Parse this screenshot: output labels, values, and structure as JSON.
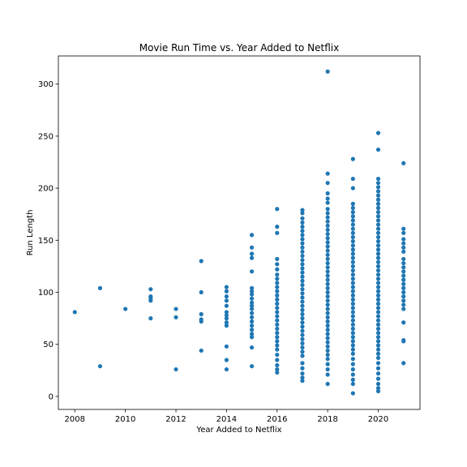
{
  "chart_data": {
    "type": "scatter",
    "title": "Movie Run Time vs. Year Added to Netflix",
    "xlabel": "Year Added to Netflix",
    "ylabel": "Run Length",
    "xlim": [
      2007.35,
      2021.65
    ],
    "ylim": [
      -12.5,
      327
    ],
    "xticks": [
      2008,
      2010,
      2012,
      2014,
      2016,
      2018,
      2020
    ],
    "yticks": [
      0,
      50,
      100,
      150,
      200,
      250,
      300
    ],
    "grid": false,
    "legend": "none",
    "marker_color": "#1f77b4",
    "series": [
      {
        "points": [
          [
            2008,
            81
          ],
          [
            2009,
            104
          ],
          [
            2009,
            29
          ],
          [
            2010,
            84
          ],
          [
            2011,
            103
          ],
          [
            2011,
            96
          ],
          [
            2011,
            94
          ],
          [
            2011,
            92
          ],
          [
            2011,
            75
          ],
          [
            2012,
            84
          ],
          [
            2012,
            76
          ],
          [
            2012,
            26
          ],
          [
            2013,
            130
          ],
          [
            2013,
            100
          ],
          [
            2013,
            79
          ],
          [
            2013,
            74
          ],
          [
            2013,
            72
          ],
          [
            2013,
            44
          ],
          [
            2014,
            105
          ],
          [
            2014,
            101
          ],
          [
            2014,
            96
          ],
          [
            2014,
            92
          ],
          [
            2014,
            87
          ],
          [
            2014,
            81
          ],
          [
            2014,
            78
          ],
          [
            2014,
            75
          ],
          [
            2014,
            71
          ],
          [
            2014,
            68
          ],
          [
            2014,
            48
          ],
          [
            2014,
            35
          ],
          [
            2014,
            26
          ],
          [
            2015,
            155
          ],
          [
            2015,
            143
          ],
          [
            2015,
            137
          ],
          [
            2015,
            133
          ],
          [
            2015,
            120
          ],
          [
            2015,
            104
          ],
          [
            2015,
            101
          ],
          [
            2015,
            98
          ],
          [
            2015,
            94
          ],
          [
            2015,
            90
          ],
          [
            2015,
            87
          ],
          [
            2015,
            84
          ],
          [
            2015,
            80
          ],
          [
            2015,
            76
          ],
          [
            2015,
            72
          ],
          [
            2015,
            68
          ],
          [
            2015,
            64
          ],
          [
            2015,
            60
          ],
          [
            2015,
            57
          ],
          [
            2015,
            47
          ],
          [
            2015,
            29
          ],
          [
            2016,
            180
          ],
          [
            2016,
            163
          ],
          [
            2016,
            157
          ],
          [
            2016,
            132
          ],
          [
            2016,
            127
          ],
          [
            2016,
            122
          ],
          [
            2016,
            117
          ],
          [
            2016,
            113
          ],
          [
            2016,
            109
          ],
          [
            2016,
            105
          ],
          [
            2016,
            101
          ],
          [
            2016,
            97
          ],
          [
            2016,
            93
          ],
          [
            2016,
            89
          ],
          [
            2016,
            85
          ],
          [
            2016,
            81
          ],
          [
            2016,
            77
          ],
          [
            2016,
            73
          ],
          [
            2016,
            69
          ],
          [
            2016,
            65
          ],
          [
            2016,
            61
          ],
          [
            2016,
            57
          ],
          [
            2016,
            53
          ],
          [
            2016,
            49
          ],
          [
            2016,
            45
          ],
          [
            2016,
            40
          ],
          [
            2016,
            35
          ],
          [
            2016,
            30
          ],
          [
            2016,
            26
          ],
          [
            2016,
            23
          ],
          [
            2017,
            179
          ],
          [
            2017,
            176
          ],
          [
            2017,
            171
          ],
          [
            2017,
            167
          ],
          [
            2017,
            163
          ],
          [
            2017,
            159
          ],
          [
            2017,
            155
          ],
          [
            2017,
            151
          ],
          [
            2017,
            147
          ],
          [
            2017,
            143
          ],
          [
            2017,
            139
          ],
          [
            2017,
            135
          ],
          [
            2017,
            131
          ],
          [
            2017,
            127
          ],
          [
            2017,
            123
          ],
          [
            2017,
            119
          ],
          [
            2017,
            115
          ],
          [
            2017,
            111
          ],
          [
            2017,
            107
          ],
          [
            2017,
            103
          ],
          [
            2017,
            99
          ],
          [
            2017,
            95
          ],
          [
            2017,
            91
          ],
          [
            2017,
            87
          ],
          [
            2017,
            83
          ],
          [
            2017,
            79
          ],
          [
            2017,
            75
          ],
          [
            2017,
            71
          ],
          [
            2017,
            67
          ],
          [
            2017,
            63
          ],
          [
            2017,
            59
          ],
          [
            2017,
            55
          ],
          [
            2017,
            51
          ],
          [
            2017,
            47
          ],
          [
            2017,
            43
          ],
          [
            2017,
            39
          ],
          [
            2017,
            32
          ],
          [
            2017,
            27
          ],
          [
            2017,
            22
          ],
          [
            2017,
            18
          ],
          [
            2017,
            15
          ],
          [
            2018,
            312
          ],
          [
            2018,
            214
          ],
          [
            2018,
            205
          ],
          [
            2018,
            195
          ],
          [
            2018,
            190
          ],
          [
            2018,
            186
          ],
          [
            2018,
            180
          ],
          [
            2018,
            176
          ],
          [
            2018,
            172
          ],
          [
            2018,
            168
          ],
          [
            2018,
            164
          ],
          [
            2018,
            160
          ],
          [
            2018,
            156
          ],
          [
            2018,
            152
          ],
          [
            2018,
            148
          ],
          [
            2018,
            144
          ],
          [
            2018,
            140
          ],
          [
            2018,
            136
          ],
          [
            2018,
            132
          ],
          [
            2018,
            128
          ],
          [
            2018,
            124
          ],
          [
            2018,
            120
          ],
          [
            2018,
            116
          ],
          [
            2018,
            112
          ],
          [
            2018,
            108
          ],
          [
            2018,
            104
          ],
          [
            2018,
            100
          ],
          [
            2018,
            96
          ],
          [
            2018,
            92
          ],
          [
            2018,
            88
          ],
          [
            2018,
            84
          ],
          [
            2018,
            80
          ],
          [
            2018,
            76
          ],
          [
            2018,
            72
          ],
          [
            2018,
            68
          ],
          [
            2018,
            64
          ],
          [
            2018,
            60
          ],
          [
            2018,
            56
          ],
          [
            2018,
            52
          ],
          [
            2018,
            48
          ],
          [
            2018,
            44
          ],
          [
            2018,
            40
          ],
          [
            2018,
            36
          ],
          [
            2018,
            31
          ],
          [
            2018,
            26
          ],
          [
            2018,
            21
          ],
          [
            2018,
            12
          ],
          [
            2019,
            228
          ],
          [
            2019,
            209
          ],
          [
            2019,
            200
          ],
          [
            2019,
            185
          ],
          [
            2019,
            181
          ],
          [
            2019,
            177
          ],
          [
            2019,
            173
          ],
          [
            2019,
            169
          ],
          [
            2019,
            165
          ],
          [
            2019,
            161
          ],
          [
            2019,
            157
          ],
          [
            2019,
            153
          ],
          [
            2019,
            149
          ],
          [
            2019,
            145
          ],
          [
            2019,
            141
          ],
          [
            2019,
            137
          ],
          [
            2019,
            133
          ],
          [
            2019,
            129
          ],
          [
            2019,
            125
          ],
          [
            2019,
            121
          ],
          [
            2019,
            117
          ],
          [
            2019,
            113
          ],
          [
            2019,
            109
          ],
          [
            2019,
            105
          ],
          [
            2019,
            101
          ],
          [
            2019,
            97
          ],
          [
            2019,
            93
          ],
          [
            2019,
            89
          ],
          [
            2019,
            85
          ],
          [
            2019,
            81
          ],
          [
            2019,
            77
          ],
          [
            2019,
            73
          ],
          [
            2019,
            69
          ],
          [
            2019,
            65
          ],
          [
            2019,
            61
          ],
          [
            2019,
            57
          ],
          [
            2019,
            53
          ],
          [
            2019,
            49
          ],
          [
            2019,
            45
          ],
          [
            2019,
            41
          ],
          [
            2019,
            36
          ],
          [
            2019,
            31
          ],
          [
            2019,
            26
          ],
          [
            2019,
            21
          ],
          [
            2019,
            16
          ],
          [
            2019,
            12
          ],
          [
            2019,
            3
          ],
          [
            2020,
            253
          ],
          [
            2020,
            237
          ],
          [
            2020,
            209
          ],
          [
            2020,
            205
          ],
          [
            2020,
            201
          ],
          [
            2020,
            197
          ],
          [
            2020,
            193
          ],
          [
            2020,
            189
          ],
          [
            2020,
            185
          ],
          [
            2020,
            181
          ],
          [
            2020,
            177
          ],
          [
            2020,
            173
          ],
          [
            2020,
            169
          ],
          [
            2020,
            165
          ],
          [
            2020,
            161
          ],
          [
            2020,
            157
          ],
          [
            2020,
            153
          ],
          [
            2020,
            149
          ],
          [
            2020,
            145
          ],
          [
            2020,
            141
          ],
          [
            2020,
            137
          ],
          [
            2020,
            133
          ],
          [
            2020,
            129
          ],
          [
            2020,
            125
          ],
          [
            2020,
            121
          ],
          [
            2020,
            117
          ],
          [
            2020,
            113
          ],
          [
            2020,
            109
          ],
          [
            2020,
            105
          ],
          [
            2020,
            101
          ],
          [
            2020,
            97
          ],
          [
            2020,
            93
          ],
          [
            2020,
            89
          ],
          [
            2020,
            85
          ],
          [
            2020,
            81
          ],
          [
            2020,
            77
          ],
          [
            2020,
            73
          ],
          [
            2020,
            69
          ],
          [
            2020,
            65
          ],
          [
            2020,
            61
          ],
          [
            2020,
            57
          ],
          [
            2020,
            53
          ],
          [
            2020,
            49
          ],
          [
            2020,
            45
          ],
          [
            2020,
            41
          ],
          [
            2020,
            37
          ],
          [
            2020,
            32
          ],
          [
            2020,
            27
          ],
          [
            2020,
            22
          ],
          [
            2020,
            17
          ],
          [
            2020,
            12
          ],
          [
            2020,
            8
          ],
          [
            2020,
            5
          ],
          [
            2021,
            224
          ],
          [
            2021,
            161
          ],
          [
            2021,
            157
          ],
          [
            2021,
            151
          ],
          [
            2021,
            147
          ],
          [
            2021,
            143
          ],
          [
            2021,
            139
          ],
          [
            2021,
            132
          ],
          [
            2021,
            128
          ],
          [
            2021,
            124
          ],
          [
            2021,
            120
          ],
          [
            2021,
            116
          ],
          [
            2021,
            112
          ],
          [
            2021,
            108
          ],
          [
            2021,
            104
          ],
          [
            2021,
            100
          ],
          [
            2021,
            96
          ],
          [
            2021,
            92
          ],
          [
            2021,
            88
          ],
          [
            2021,
            84
          ],
          [
            2021,
            71
          ],
          [
            2021,
            54
          ],
          [
            2021,
            53
          ],
          [
            2021,
            32
          ]
        ]
      }
    ]
  }
}
